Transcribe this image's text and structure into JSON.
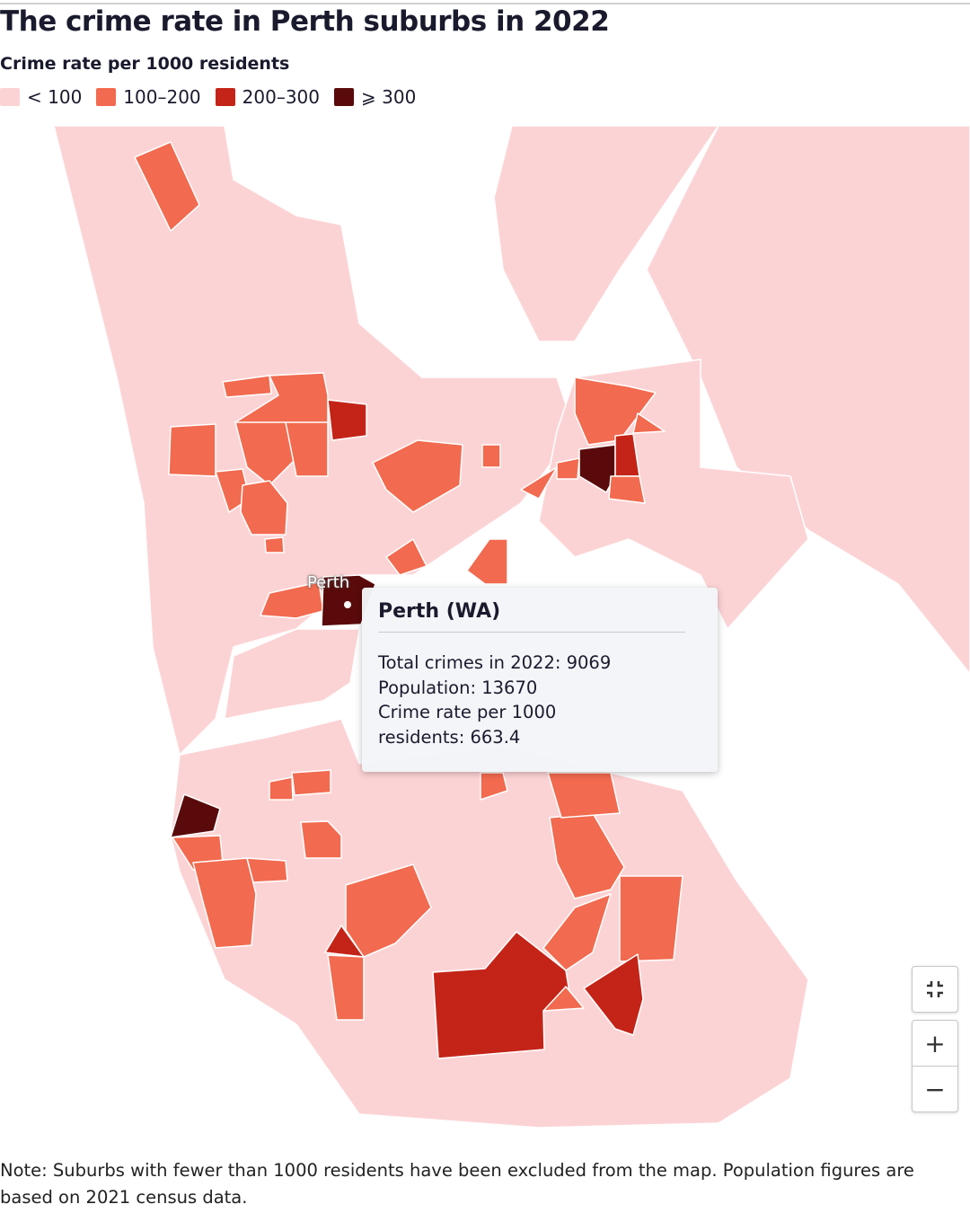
{
  "header": {
    "title": "The crime rate in Perth suburbs in 2022",
    "subtitle": "Crime rate per 1000 residents"
  },
  "legend": [
    {
      "label": "< 100",
      "color": "#fcd3d5"
    },
    {
      "label": "100–200",
      "color": "#f26a4f"
    },
    {
      "label": "200–300",
      "color": "#c42418"
    },
    {
      "label": "⩾ 300",
      "color": "#5a0a0a"
    }
  ],
  "map": {
    "city_label": "Perth"
  },
  "tooltip": {
    "title": "Perth (WA)",
    "lines": [
      "Total crimes in 2022: 9069",
      "Population: 13670",
      "Crime rate per 1000 residents: 663.4"
    ]
  },
  "controls": {
    "zoom_in": "+",
    "zoom_out": "−"
  },
  "note": "Note: Suburbs with fewer than 1000 residents have been excluded from the map. Population figures are based on 2021 census data."
}
